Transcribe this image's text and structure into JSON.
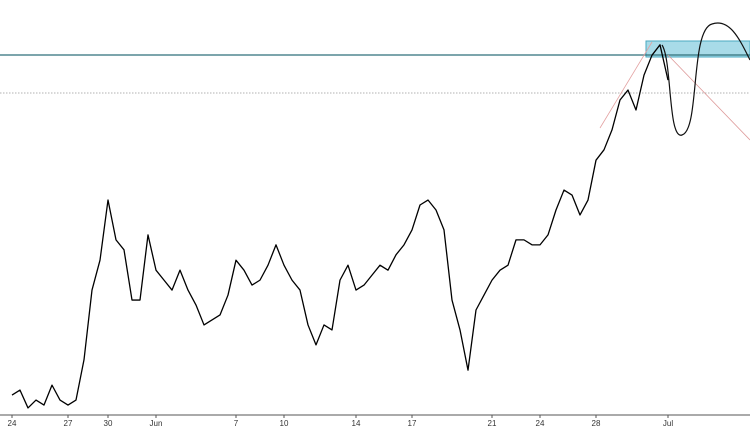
{
  "chart_data": {
    "type": "line",
    "categories": [
      "24",
      null,
      null,
      null,
      null,
      null,
      null,
      "27",
      null,
      null,
      null,
      null,
      "30",
      null,
      null,
      null,
      null,
      null,
      "Jun",
      null,
      null,
      null,
      null,
      null,
      null,
      null,
      null,
      null,
      "7",
      null,
      null,
      null,
      null,
      null,
      "10",
      null,
      null,
      null,
      null,
      null,
      null,
      null,
      null,
      "14",
      null,
      null,
      null,
      null,
      null,
      null,
      "17",
      null,
      null,
      null,
      null,
      null,
      null,
      null,
      null,
      null,
      "21",
      null,
      null,
      null,
      null,
      null,
      "24",
      null,
      null,
      null,
      null,
      null,
      null,
      "28",
      null,
      null,
      null,
      null,
      null,
      null,
      null,
      null,
      "Jul"
    ],
    "values": [
      4.8,
      6.0,
      1.7,
      3.6,
      2.4,
      7.2,
      3.6,
      2.4,
      3.6,
      13.3,
      30.1,
      37.3,
      51.8,
      42.2,
      39.8,
      27.7,
      27.7,
      43.4,
      34.9,
      32.5,
      30.1,
      34.9,
      30.1,
      26.5,
      21.7,
      22.9,
      24.1,
      28.9,
      37.3,
      34.9,
      31.3,
      32.5,
      36.1,
      41.0,
      36.1,
      32.5,
      30.1,
      21.7,
      16.9,
      21.7,
      20.5,
      32.5,
      36.1,
      30.1,
      31.3,
      33.7,
      36.1,
      34.9,
      38.6,
      41.0,
      44.6,
      50.6,
      51.8,
      49.4,
      44.6,
      27.7,
      20.5,
      10.8,
      25.3,
      28.9,
      32.5,
      34.9,
      36.1,
      42.2,
      42.2,
      41.0,
      41.0,
      43.4,
      49.4,
      54.2,
      53.0,
      48.2,
      51.8,
      61.4,
      63.9,
      68.7,
      75.9,
      78.3,
      73.5,
      81.9,
      86.7,
      89.2,
      80.7
    ],
    "color": "#000000",
    "ylim": [
      0,
      100
    ]
  }
}
